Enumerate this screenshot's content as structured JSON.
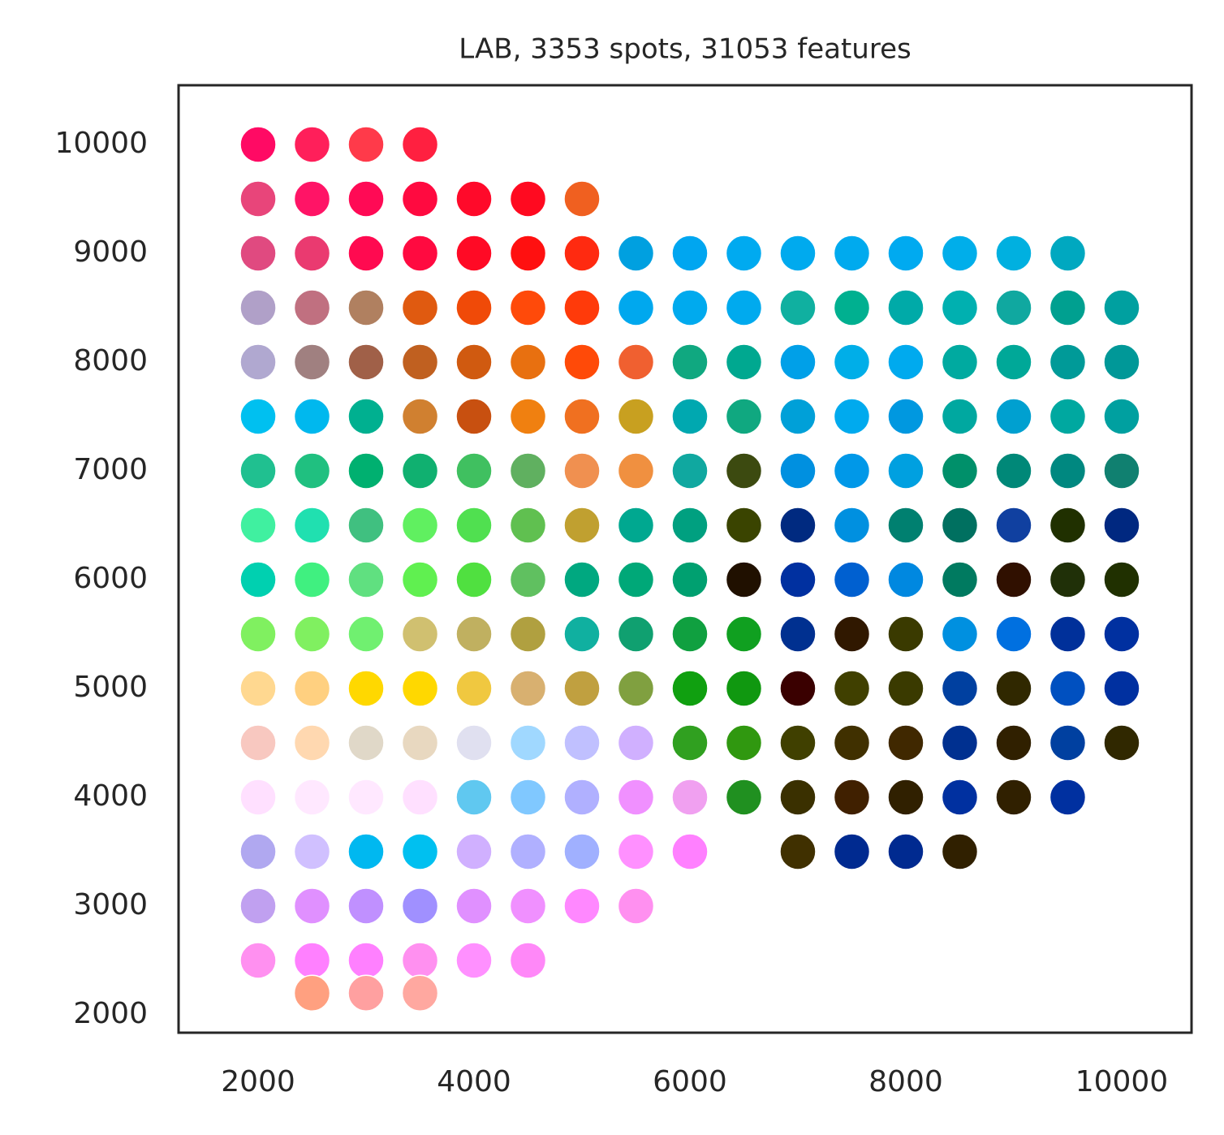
{
  "chart_data": {
    "type": "scatter",
    "title": "LAB, 3353 spots, 31053 features",
    "xlim": [
      1263,
      10647
    ],
    "ylim": [
      1836,
      10545
    ],
    "xticks": [
      2000,
      4000,
      6000,
      8000,
      10000
    ],
    "yticks": [
      2000,
      3000,
      4000,
      5000,
      6000,
      7000,
      8000,
      9000,
      10000
    ],
    "x": [
      2000,
      2500,
      3000,
      3500,
      2000,
      2500,
      3000,
      3500,
      4000,
      4500,
      5000,
      2000,
      2500,
      3000,
      3500,
      4000,
      4500,
      5000,
      5500,
      6000,
      6500,
      7000,
      7500,
      8000,
      8500,
      9000,
      9500,
      2000,
      2500,
      3000,
      3500,
      4000,
      4500,
      5000,
      5500,
      6000,
      6500,
      7000,
      7500,
      8000,
      8500,
      9000,
      9500,
      10000,
      2000,
      2500,
      3000,
      3500,
      4000,
      4500,
      5000,
      5500,
      6000,
      6500,
      7000,
      7500,
      8000,
      8500,
      9000,
      9500,
      10000,
      2000,
      2500,
      3000,
      3500,
      4000,
      4500,
      5000,
      5500,
      6000,
      6500,
      7000,
      7500,
      8000,
      8500,
      9000,
      9500,
      10000,
      2000,
      2500,
      3000,
      3500,
      4000,
      4500,
      5000,
      5500,
      6000,
      6500,
      7000,
      7500,
      8000,
      8500,
      9000,
      9500,
      10000,
      2000,
      2500,
      3000,
      3500,
      4000,
      4500,
      5000,
      5500,
      6000,
      6500,
      7000,
      7500,
      8000,
      8500,
      9000,
      9500,
      10000,
      2000,
      2500,
      3000,
      3500,
      4000,
      4500,
      5000,
      5500,
      6000,
      6500,
      7000,
      7500,
      8000,
      8500,
      9000,
      9500,
      10000,
      2000,
      2500,
      3000,
      3500,
      4000,
      4500,
      5000,
      5500,
      6000,
      6500,
      7000,
      7500,
      8000,
      8500,
      9000,
      9500,
      10000,
      2000,
      2500,
      3000,
      3500,
      4000,
      4500,
      5000,
      5500,
      6000,
      6500,
      7000,
      7500,
      8000,
      8500,
      9000,
      9500,
      10000,
      2000,
      2500,
      3000,
      3500,
      4000,
      4500,
      5000,
      5500,
      6000,
      6500,
      7000,
      7500,
      8000,
      8500,
      9000,
      9500,
      10000,
      2000,
      2500,
      3000,
      3500,
      4000,
      4500,
      5000,
      5500,
      6000,
      6500,
      7000,
      7500,
      8000,
      8500,
      9000,
      9500,
      2000,
      2500,
      3000,
      3500,
      4000,
      4500,
      5000,
      5500,
      6000,
      7000,
      7500,
      8000,
      8500,
      2000,
      2500,
      3000,
      3500,
      4000,
      4500,
      5000,
      5500,
      2000,
      2500,
      3000,
      3500,
      4000,
      4500,
      2500,
      3000,
      3500
    ],
    "values": [
      10000,
      10000,
      10000,
      10000,
      9500,
      9500,
      9500,
      9500,
      9500,
      9500,
      9500,
      9000,
      9000,
      9000,
      9000,
      9000,
      9000,
      9000,
      9000,
      9000,
      9000,
      9000,
      9000,
      9000,
      9000,
      9000,
      9000,
      8500,
      8500,
      8500,
      8500,
      8500,
      8500,
      8500,
      8500,
      8500,
      8500,
      8500,
      8500,
      8500,
      8500,
      8500,
      8500,
      8500,
      8000,
      8000,
      8000,
      8000,
      8000,
      8000,
      8000,
      8000,
      8000,
      8000,
      8000,
      8000,
      8000,
      8000,
      8000,
      8000,
      8000,
      7500,
      7500,
      7500,
      7500,
      7500,
      7500,
      7500,
      7500,
      7500,
      7500,
      7500,
      7500,
      7500,
      7500,
      7500,
      7500,
      7500,
      7000,
      7000,
      7000,
      7000,
      7000,
      7000,
      7000,
      7000,
      7000,
      7000,
      7000,
      7000,
      7000,
      7000,
      7000,
      7000,
      7000,
      6500,
      6500,
      6500,
      6500,
      6500,
      6500,
      6500,
      6500,
      6500,
      6500,
      6500,
      6500,
      6500,
      6500,
      6500,
      6500,
      6500,
      6000,
      6000,
      6000,
      6000,
      6000,
      6000,
      6000,
      6000,
      6000,
      6000,
      6000,
      6000,
      6000,
      6000,
      6000,
      6000,
      6000,
      5500,
      5500,
      5500,
      5500,
      5500,
      5500,
      5500,
      5500,
      5500,
      5500,
      5500,
      5500,
      5500,
      5500,
      5500,
      5500,
      5500,
      5000,
      5000,
      5000,
      5000,
      5000,
      5000,
      5000,
      5000,
      5000,
      5000,
      5000,
      5000,
      5000,
      5000,
      5000,
      5000,
      5000,
      4500,
      4500,
      4500,
      4500,
      4500,
      4500,
      4500,
      4500,
      4500,
      4500,
      4500,
      4500,
      4500,
      4500,
      4500,
      4500,
      4500,
      4000,
      4000,
      4000,
      4000,
      4000,
      4000,
      4000,
      4000,
      4000,
      4000,
      4000,
      4000,
      4000,
      4000,
      4000,
      4000,
      3500,
      3500,
      3500,
      3500,
      3500,
      3500,
      3500,
      3500,
      3500,
      3500,
      3500,
      3500,
      3500,
      3000,
      3000,
      3000,
      3000,
      3000,
      3000,
      3000,
      3000,
      2500,
      2500,
      2500,
      2500,
      2500,
      2500,
      2200,
      2200,
      2200
    ],
    "colors": [
      "#ff0a64",
      "#ff1f5a",
      "#ff3a4a",
      "#ff2040",
      "#e8457a",
      "#ff1466",
      "#ff0a55",
      "#ff0a40",
      "#ff0a2a",
      "#ff0a20",
      "#f06020",
      "#e04a80",
      "#ea3a70",
      "#ff0a50",
      "#ff0a40",
      "#ff0a25",
      "#ff1010",
      "#ff2a10",
      "#00a0e0",
      "#00a6f0",
      "#00aaf0",
      "#00aaee",
      "#00aaee",
      "#00aaf0",
      "#00aeea",
      "#00b0e0",
      "#00a8c0",
      "#b0a0c8",
      "#c07080",
      "#b08060",
      "#e05a10",
      "#f04a08",
      "#ff4a0a",
      "#ff3a0a",
      "#00a8ee",
      "#00aaee",
      "#00aaee",
      "#10b0a0",
      "#00b090",
      "#00aaa8",
      "#00b0b0",
      "#10a8a0",
      "#00a090",
      "#00a0a0",
      "#b0a8d0",
      "#a08080",
      "#a06048",
      "#c06020",
      "#d05a10",
      "#e87010",
      "#ff4a08",
      "#f06030",
      "#10a880",
      "#00a890",
      "#00a0e8",
      "#00aee8",
      "#00aaee",
      "#00aaa0",
      "#00a898",
      "#009a98",
      "#009898",
      "#00c0f0",
      "#00b8ee",
      "#00b090",
      "#d08030",
      "#c85010",
      "#f08010",
      "#f07020",
      "#c8a020",
      "#00a8b0",
      "#10a880",
      "#00a0d8",
      "#00aaee",
      "#0098e0",
      "#00a8a0",
      "#00a0d0",
      "#00a8a0",
      "#00a0a0",
      "#20c090",
      "#20c080",
      "#00b070",
      "#10b070",
      "#40c060",
      "#60b060",
      "#f09050",
      "#f09040",
      "#10a8a0",
      "#3c4a10",
      "#0090e0",
      "#0098e8",
      "#00a0e0",
      "#00906a",
      "#008878",
      "#008880",
      "#108070",
      "#40f0a0",
      "#20e0b0",
      "#40c080",
      "#60f060",
      "#50e050",
      "#60c050",
      "#c0a030",
      "#00a890",
      "#00a080",
      "#3a4400",
      "#002a80",
      "#0090e0",
      "#008070",
      "#007060",
      "#1040a0",
      "#203000",
      "#002880",
      "#00d0b0",
      "#40f080",
      "#60e080",
      "#60f050",
      "#50e040",
      "#60c060",
      "#00a880",
      "#00a878",
      "#00a070",
      "#201000",
      "#0030a0",
      "#0060d0",
      "#0088e0",
      "#007a60",
      "#301000",
      "#203008",
      "#203000",
      "#80f060",
      "#80f060",
      "#70f070",
      "#d0c070",
      "#c0b060",
      "#b0a040",
      "#10b0a0",
      "#10a070",
      "#10a040",
      "#10a020",
      "#003090",
      "#301800",
      "#3a3a00",
      "#0090e0",
      "#0070e0",
      "#00309a",
      "#0030a0",
      "#ffd890",
      "#ffd080",
      "#ffd800",
      "#ffd800",
      "#f0c840",
      "#d8b070",
      "#c0a040",
      "#80a040",
      "#10a010",
      "#109810",
      "#3a0000",
      "#404000",
      "#3a3a00",
      "#0040a0",
      "#302800",
      "#0050c0",
      "#0030a0",
      "#f8c8c0",
      "#ffd8b0",
      "#e0d8c8",
      "#e8d8c0",
      "#e0e0f0",
      "#a0d8ff",
      "#c0c0ff",
      "#d0b0ff",
      "#30a020",
      "#309810",
      "#404000",
      "#403000",
      "#402800",
      "#003090",
      "#302000",
      "#0040a0",
      "#302800",
      "#ffe0ff",
      "#ffe8ff",
      "#ffe8ff",
      "#ffe0ff",
      "#60c8f0",
      "#80c8ff",
      "#b0b0ff",
      "#f090ff",
      "#f0a0f0",
      "#209020",
      "#3a3000",
      "#402000",
      "#302000",
      "#0030a0",
      "#302000",
      "#0030a0",
      "#b0a8f0",
      "#d0c0ff",
      "#00b8f0",
      "#00c0f0",
      "#d0b0ff",
      "#b0b0ff",
      "#a0b0ff",
      "#ff90ff",
      "#ff80ff",
      "#403000",
      "#002a90",
      "#002a90",
      "#302000",
      "#c0a0f0",
      "#e090ff",
      "#c090ff",
      "#a090ff",
      "#e090ff",
      "#f090ff",
      "#ff88ff",
      "#ff90f0",
      "#ff90f0",
      "#ff80ff",
      "#ff80ff",
      "#ff90f0",
      "#ff90ff",
      "#ff88f8",
      "#ffa080",
      "#ffa0a0",
      "#ffa8a0"
    ]
  }
}
